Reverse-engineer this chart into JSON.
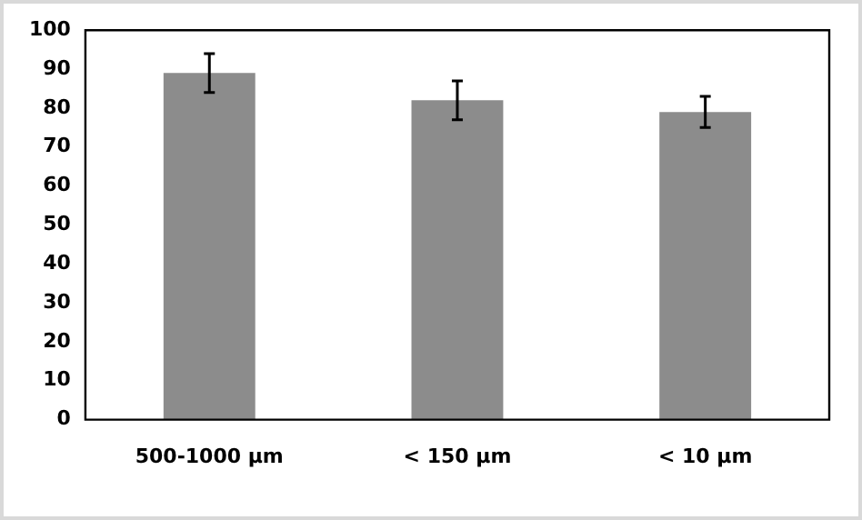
{
  "chart_data": {
    "type": "bar",
    "categories": [
      "500-1000 µm",
      "< 150 µm",
      "< 10 µm"
    ],
    "values": [
      89,
      82,
      79
    ],
    "errors": [
      5,
      5,
      4
    ],
    "color": "#8c8c8c",
    "ylim": [
      0,
      100
    ],
    "yticks": [
      0,
      10,
      20,
      30,
      40,
      50,
      60,
      70,
      80,
      90,
      100
    ],
    "grid": false,
    "legend": false
  }
}
